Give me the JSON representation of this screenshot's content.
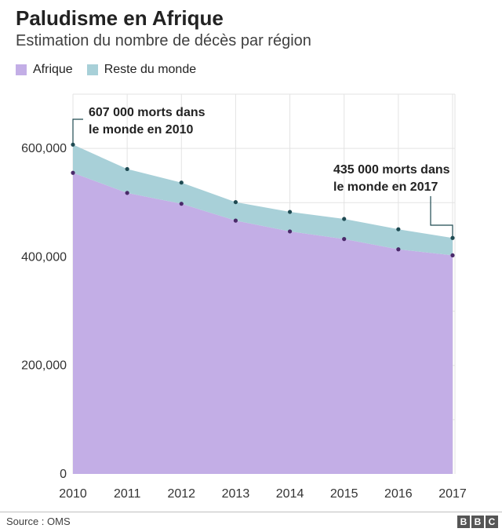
{
  "chart_data": {
    "type": "area",
    "title": "Paludisme en Afrique",
    "subtitle": "Estimation du nombre de décès par région",
    "x": [
      2010,
      2011,
      2012,
      2013,
      2014,
      2015,
      2016,
      2017
    ],
    "x_tick_labels": [
      "2010",
      "2011",
      "2012",
      "2013",
      "2014",
      "2015",
      "2016",
      "2017"
    ],
    "series": [
      {
        "name": "Afrique",
        "values": [
          555000,
          518000,
          498000,
          467000,
          447000,
          433000,
          414000,
          403000
        ],
        "color": "#c3aee6"
      },
      {
        "name": "Reste du monde",
        "values": [
          52000,
          44000,
          39000,
          34000,
          36000,
          37000,
          37000,
          32000
        ],
        "color": "#a8d0d8"
      }
    ],
    "stacked": true,
    "ylim": [
      0,
      700000
    ],
    "y_ticks": [
      0,
      200000,
      400000,
      600000
    ],
    "y_tick_labels": [
      "0",
      "200,000",
      "400,000",
      "600,000"
    ],
    "xlabel": "",
    "ylabel": "",
    "grid": true,
    "legend_position": "top-left",
    "annotations": [
      {
        "x": 2010,
        "value": 607000,
        "lines": [
          "607 000 morts dans",
          "le monde en 2010"
        ]
      },
      {
        "x": 2017,
        "value": 435000,
        "lines": [
          "435 000 morts dans",
          "le monde en 2017"
        ]
      }
    ]
  },
  "footer": {
    "source": "Source : OMS",
    "logo_letters": [
      "B",
      "B",
      "C"
    ]
  },
  "colors": {
    "africa": "#c3aee6",
    "rest": "#a8d0d8",
    "africa_marker": "#4a2a6a",
    "rest_marker": "#1f4a52",
    "grid": "#e3e3e3"
  }
}
